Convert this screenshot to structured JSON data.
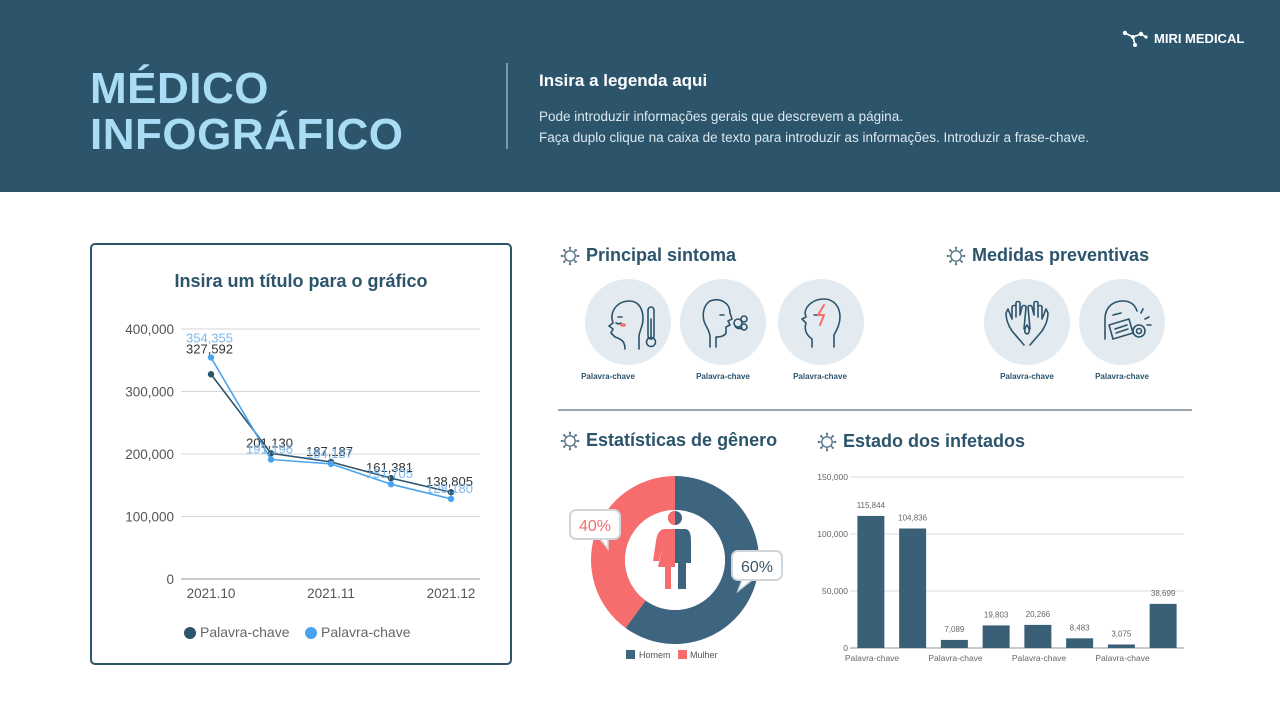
{
  "header": {
    "title_line1": "MÉDICO",
    "title_line2": "INFOGRÁFICO",
    "subtitle": "Insira a legenda aqui",
    "desc_line1": "Pode introduzir informações gerais que descrevem a página.",
    "desc_line2": "Faça duplo clique na caixa de texto para introduzir as informações. Introduzir a frase-chave.",
    "brand": "MIRI MEDICAL",
    "brand_icon": "molecule-icon"
  },
  "colors": {
    "header_bg": "#2c546b",
    "title": "#a9dcf5",
    "dark_series": "#2c546b",
    "light_series": "#4aa3ef",
    "female": "#f76c6c",
    "male": "#3d6580",
    "circle_bg": "#e4ebf0"
  },
  "sections": {
    "symptoms": {
      "title": "Principal sintoma",
      "icon": "virus-icon",
      "items": [
        {
          "label": "Palavra-chave",
          "icon": "fever-thermometer-icon"
        },
        {
          "label": "Palavra-chave",
          "icon": "cough-icon"
        },
        {
          "label": "Palavra-chave",
          "icon": "headache-icon"
        }
      ]
    },
    "prevention": {
      "title": "Medidas preventivas",
      "icon": "virus-icon",
      "items": [
        {
          "label": "Palavra-chave",
          "icon": "hand-washing-icon"
        },
        {
          "label": "Palavra-chave",
          "icon": "face-mask-icon"
        }
      ]
    },
    "gender": {
      "title": "Estatísticas de gênero",
      "icon": "virus-icon"
    },
    "infected": {
      "title": "Estado dos infetados",
      "icon": "virus-icon"
    }
  },
  "chart_data": [
    {
      "type": "line",
      "title": "Insira um título para o gráfico",
      "x": [
        "2021.10",
        "",
        "2021.11",
        "",
        "2021.12"
      ],
      "x_tick_labels": [
        "2021.10",
        "2021.11",
        "2021.12"
      ],
      "y_ticks": [
        "400,000",
        "300,000",
        "200,000",
        "100,000",
        "0"
      ],
      "ylim": [
        0,
        400000
      ],
      "grid": true,
      "legend_position": "bottom",
      "series": [
        {
          "name": "Palavra-chave",
          "values": [
            327592,
            201130,
            187187,
            161381,
            138805
          ],
          "labels": [
            "327,592",
            "201,130",
            "187,187",
            "161,381",
            "138,805"
          ]
        },
        {
          "name": "Palavra-chave",
          "values": [
            354355,
            191196,
            184187,
            151705,
            128180
          ],
          "labels": [
            "354,355",
            "191,196",
            "184,187",
            "151,705",
            "128,180"
          ]
        }
      ]
    },
    {
      "type": "pie",
      "labels": [
        "Homem",
        "Mulher"
      ],
      "values": [
        60,
        40
      ],
      "value_labels": [
        "60%",
        "40%"
      ],
      "legend_position": "bottom"
    },
    {
      "type": "bar",
      "categories": [
        "Palavra-chave",
        "",
        "Palavra-chave",
        "",
        "Palavra-chave",
        "",
        "Palavra-chave",
        ""
      ],
      "values": [
        115844,
        104836,
        7089,
        19803,
        20266,
        8483,
        3075,
        38699
      ],
      "value_labels": [
        "115,844",
        "104,836",
        "7,089",
        "19,803",
        "20,266",
        "8,483",
        "3,075",
        "38,699"
      ],
      "y_ticks": [
        "150,000",
        "100,000",
        "50,000",
        "0"
      ],
      "ylim": [
        0,
        150000
      ],
      "grid": true
    }
  ]
}
